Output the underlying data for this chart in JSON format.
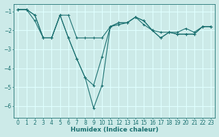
{
  "xlabel": "Humidex (Indice chaleur)",
  "ylabel": "",
  "background_color": "#cceae8",
  "grid_color": "#dfffff",
  "line_color": "#1a7070",
  "xlim": [
    -0.5,
    23.5
  ],
  "ylim": [
    -6.6,
    -0.6
  ],
  "yticks": [
    -6,
    -5,
    -4,
    -3,
    -2,
    -1
  ],
  "xticks": [
    0,
    1,
    2,
    3,
    4,
    5,
    6,
    7,
    8,
    9,
    10,
    11,
    12,
    13,
    14,
    15,
    16,
    17,
    18,
    19,
    20,
    21,
    22,
    23
  ],
  "series": [
    {
      "x": [
        0,
        1,
        2,
        3,
        4,
        5,
        6,
        7,
        8,
        9,
        10,
        11,
        12,
        13,
        14,
        15,
        16,
        17,
        18,
        19,
        20,
        21,
        22,
        23
      ],
      "y": [
        -0.9,
        -0.9,
        -1.2,
        -2.4,
        -2.4,
        -1.2,
        -1.2,
        -2.4,
        -2.4,
        -2.4,
        -2.4,
        -1.8,
        -1.7,
        -1.6,
        -1.3,
        -1.7,
        -2.0,
        -2.1,
        -2.1,
        -2.1,
        -1.9,
        -2.1,
        -1.8,
        -1.8
      ]
    },
    {
      "x": [
        0,
        1,
        2,
        3,
        4,
        5,
        6,
        7,
        8,
        9,
        10,
        11,
        12,
        13,
        14,
        15,
        16,
        17,
        18,
        19,
        20,
        21,
        22,
        23
      ],
      "y": [
        -0.9,
        -0.9,
        -1.2,
        -2.4,
        -2.4,
        -1.2,
        -2.4,
        -3.5,
        -4.5,
        -4.9,
        -3.4,
        -1.8,
        -1.6,
        -1.6,
        -1.3,
        -1.5,
        -2.0,
        -2.4,
        -2.1,
        -2.2,
        -2.2,
        -2.2,
        -1.8,
        -1.8
      ]
    },
    {
      "x": [
        0,
        1,
        2,
        3,
        4,
        5,
        6,
        7,
        8,
        9,
        10,
        11,
        12,
        13,
        14,
        15,
        16,
        17,
        18,
        19,
        20,
        21,
        22,
        23
      ],
      "y": [
        -0.9,
        -0.9,
        -1.5,
        -2.4,
        -2.4,
        -1.2,
        -2.4,
        -3.5,
        -4.5,
        -6.1,
        -4.9,
        -1.8,
        -1.6,
        -1.6,
        -1.3,
        -1.5,
        -2.0,
        -2.4,
        -2.1,
        -2.2,
        -2.2,
        -2.2,
        -1.8,
        -1.8
      ]
    }
  ]
}
